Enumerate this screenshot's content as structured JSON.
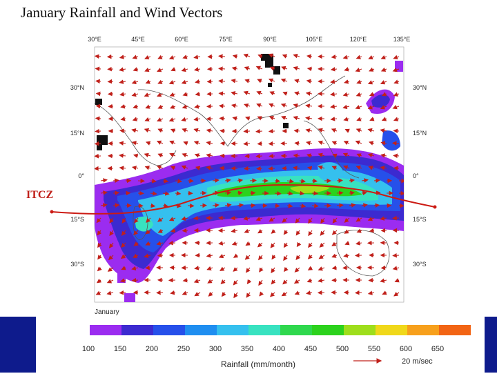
{
  "title": "January Rainfall and Wind Vectors",
  "panel_label": "January",
  "itcz_label": "ITCZ",
  "lon_ticks": [
    "30°E",
    "45°E",
    "60°E",
    "75°E",
    "90°E",
    "105°E",
    "120°E",
    "135°E"
  ],
  "lat_ticks": [
    "30°N",
    "15°N",
    "0°",
    "15°S",
    "30°S"
  ],
  "legend": {
    "values": [
      "100",
      "150",
      "200",
      "250",
      "300",
      "350",
      "400",
      "450",
      "500",
      "550",
      "600",
      "650"
    ],
    "colors": [
      "#9b2cf0",
      "#3c2ad0",
      "#2650ea",
      "#1f8ef0",
      "#35c0ee",
      "#38e2c0",
      "#2fd84e",
      "#2cd21d",
      "#9ede1c",
      "#f0d81a",
      "#f7a01c",
      "#f26414"
    ],
    "title": "Rainfall (mm/month)",
    "vector_scale": "20 m/sec"
  }
}
